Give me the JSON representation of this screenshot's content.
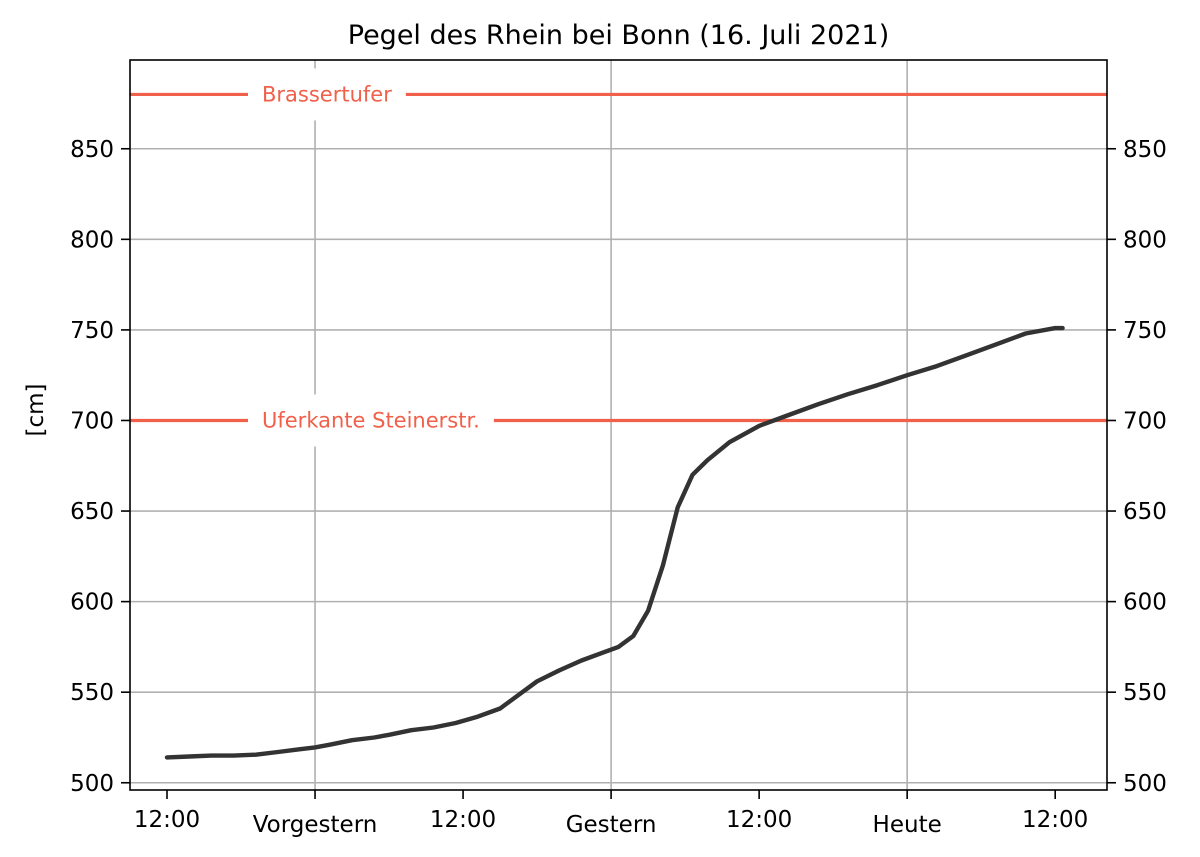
{
  "chart_data": {
    "type": "line",
    "title": "Pegel des Rhein bei Bonn (16. Juli 2021)",
    "xlabel": "",
    "ylabel": "[cm]",
    "ylim": [
      496,
      899
    ],
    "xlim": [
      -0.25,
      6.35
    ],
    "yticks": [
      500,
      550,
      600,
      650,
      700,
      750,
      800,
      850
    ],
    "xticks": [
      {
        "pos": 0,
        "label": "12:00"
      },
      {
        "pos": 1,
        "label": "Vorgestern"
      },
      {
        "pos": 2,
        "label": "12:00"
      },
      {
        "pos": 3,
        "label": "Gestern"
      },
      {
        "pos": 4,
        "label": "12:00"
      },
      {
        "pos": 5,
        "label": "Heute"
      },
      {
        "pos": 6,
        "label": "12:00"
      }
    ],
    "grid_x": [
      1,
      3,
      5
    ],
    "grid": true,
    "line_color": "#333333",
    "reference_color": "#f0604a",
    "reference_lines": [
      {
        "label": "Brassertufer",
        "value": 880
      },
      {
        "label": "Uferkante Steinerstr.",
        "value": 700
      }
    ],
    "series": [
      {
        "x": [
          0.0,
          0.15,
          0.3,
          0.45,
          0.6,
          0.75,
          0.9,
          1.0,
          1.1,
          1.25,
          1.4,
          1.5,
          1.65,
          1.8,
          1.95,
          2.1,
          2.25,
          2.35,
          2.5,
          2.65,
          2.8,
          2.95,
          3.05,
          3.15,
          3.25,
          3.35,
          3.45,
          3.55,
          3.65,
          3.8,
          4.0,
          4.2,
          4.4,
          4.6,
          4.8,
          5.0,
          5.2,
          5.4,
          5.6,
          5.8,
          6.0,
          6.05
        ],
        "y": [
          514,
          514.5,
          515,
          515,
          515.5,
          517,
          518.5,
          519.5,
          521,
          523.5,
          525,
          526.5,
          529,
          530.5,
          533,
          536.5,
          541,
          547,
          556,
          562,
          567.5,
          572,
          575,
          581,
          595,
          620,
          652,
          670,
          678,
          688,
          697,
          703,
          709,
          714.5,
          719.5,
          725,
          730,
          736,
          742,
          748,
          751,
          751
        ]
      }
    ]
  }
}
